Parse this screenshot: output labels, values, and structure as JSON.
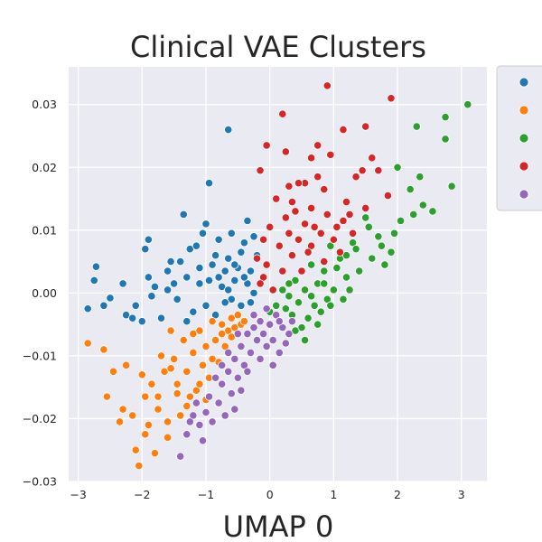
{
  "chart_data": {
    "type": "scatter",
    "title": "Clinical VAE Clusters",
    "xlabel": "UMAP 0",
    "ylabel": "",
    "xlim": [
      -3.15,
      3.4
    ],
    "ylim": [
      -0.03,
      0.036
    ],
    "xticks": [
      "−3",
      "−2",
      "−1",
      "0",
      "1",
      "2",
      "3"
    ],
    "xtick_values": [
      -3,
      -2,
      -1,
      0,
      1,
      2,
      3
    ],
    "yticks": [
      "−0.03",
      "−0.02",
      "−0.01",
      "0.00",
      "0.01",
      "0.02",
      "0.03"
    ],
    "ytick_values": [
      -0.03,
      -0.02,
      -0.01,
      0.0,
      0.01,
      0.02,
      0.03
    ],
    "grid": true,
    "background": "#eaeaf2",
    "legend_placement": "outside-right",
    "series": [
      {
        "color": "#1f77b4",
        "values": [
          [
            -2.85,
            -0.0025
          ],
          [
            -2.72,
            0.0042
          ],
          [
            -2.75,
            0.002
          ],
          [
            -2.6,
            -0.002
          ],
          [
            -2.5,
            -0.0008
          ],
          [
            -2.3,
            0.0015
          ],
          [
            -2.25,
            -0.0035
          ],
          [
            -2.1,
            -0.002
          ],
          [
            -2.0,
            -0.0045
          ],
          [
            -1.85,
            -0.0005
          ],
          [
            -1.9,
            0.0085
          ],
          [
            -1.95,
            0.007
          ],
          [
            -1.9,
            0.0025
          ],
          [
            -1.8,
            0.001
          ],
          [
            -1.7,
            -0.004
          ],
          [
            -1.6,
            0.0035
          ],
          [
            -1.55,
            0.005
          ],
          [
            -1.5,
            0.0015
          ],
          [
            -1.45,
            -0.001
          ],
          [
            -1.4,
            0.005
          ],
          [
            -1.35,
            0.0125
          ],
          [
            -1.3,
            0.0025
          ],
          [
            -1.25,
            0.007
          ],
          [
            -1.15,
            0.0075
          ],
          [
            -1.1,
            0.004
          ],
          [
            -1.05,
            0.0095
          ],
          [
            -1.0,
            0.011
          ],
          [
            -0.95,
            0.002
          ],
          [
            -0.9,
            0.0045
          ],
          [
            -0.85,
            0.006
          ],
          [
            -0.8,
            0.0085
          ],
          [
            -0.75,
            0.001
          ],
          [
            -0.7,
            0.0035
          ],
          [
            -0.65,
            0.0055
          ],
          [
            -0.6,
            -0.001
          ],
          [
            -0.55,
            0.002
          ],
          [
            -0.5,
            0.004
          ],
          [
            -0.45,
            0.0065
          ],
          [
            -0.4,
            0.008
          ],
          [
            -0.35,
            0.0015
          ],
          [
            -0.3,
            0.0035
          ],
          [
            -0.25,
            0.009
          ],
          [
            -0.2,
            0.006
          ],
          [
            -0.25,
            0.0
          ],
          [
            -0.45,
            -0.002
          ],
          [
            -0.7,
            -0.0015
          ],
          [
            -0.85,
            -0.0035
          ],
          [
            -1.0,
            -0.002
          ],
          [
            -1.2,
            -0.003
          ],
          [
            -1.3,
            -0.0045
          ],
          [
            -0.6,
            0.0095
          ],
          [
            -0.35,
            0.0115
          ],
          [
            -0.95,
            0.0175
          ],
          [
            -0.65,
            0.026
          ],
          [
            -1.6,
            0.0005
          ],
          [
            -2.15,
            -0.004
          ],
          [
            -0.55,
            0.0045
          ],
          [
            -0.4,
            0.0025
          ],
          [
            -0.8,
            0.0025
          ],
          [
            -1.1,
            0.0015
          ],
          [
            -0.3,
            -0.0015
          ],
          [
            -0.65,
            0.0005
          ]
        ]
      },
      {
        "color": "#ff7f0e",
        "values": [
          [
            -2.85,
            -0.008
          ],
          [
            -2.6,
            -0.009
          ],
          [
            -2.55,
            -0.0165
          ],
          [
            -2.45,
            -0.0125
          ],
          [
            -2.35,
            -0.0205
          ],
          [
            -2.25,
            -0.0115
          ],
          [
            -2.15,
            -0.0195
          ],
          [
            -2.1,
            -0.025
          ],
          [
            -2.05,
            -0.0275
          ],
          [
            -2.0,
            -0.013
          ],
          [
            -1.95,
            -0.0165
          ],
          [
            -1.9,
            -0.021
          ],
          [
            -1.85,
            -0.0145
          ],
          [
            -1.8,
            -0.0255
          ],
          [
            -1.75,
            -0.0185
          ],
          [
            -1.7,
            -0.01
          ],
          [
            -1.65,
            -0.0125
          ],
          [
            -1.6,
            -0.023
          ],
          [
            -1.55,
            -0.006
          ],
          [
            -1.5,
            -0.0105
          ],
          [
            -1.45,
            -0.0145
          ],
          [
            -1.4,
            -0.0195
          ],
          [
            -1.35,
            -0.0075
          ],
          [
            -1.3,
            -0.0125
          ],
          [
            -1.25,
            -0.0165
          ],
          [
            -1.2,
            -0.0095
          ],
          [
            -1.15,
            -0.0155
          ],
          [
            -1.1,
            -0.006
          ],
          [
            -1.05,
            -0.0115
          ],
          [
            -1.0,
            -0.0085
          ],
          [
            -0.95,
            -0.0135
          ],
          [
            -0.9,
            -0.0045
          ],
          [
            -0.85,
            -0.0075
          ],
          [
            -0.8,
            -0.011
          ],
          [
            -0.75,
            -0.005
          ],
          [
            -0.7,
            -0.0085
          ],
          [
            -0.65,
            -0.006
          ],
          [
            -0.6,
            -0.004
          ],
          [
            -0.55,
            -0.0055
          ],
          [
            -0.5,
            -0.0035
          ],
          [
            -0.45,
            -0.005
          ],
          [
            -0.4,
            -0.0045
          ],
          [
            -1.6,
            -0.0205
          ],
          [
            -1.3,
            -0.018
          ],
          [
            -1.0,
            -0.017
          ],
          [
            -1.2,
            -0.0065
          ],
          [
            -1.45,
            -0.016
          ],
          [
            -0.9,
            -0.0105
          ],
          [
            -0.75,
            -0.0065
          ],
          [
            -1.75,
            -0.0165
          ],
          [
            -2.3,
            -0.0185
          ],
          [
            -1.95,
            -0.0225
          ],
          [
            -0.6,
            -0.007
          ],
          [
            -1.1,
            -0.0145
          ],
          [
            -1.55,
            -0.012
          ]
        ]
      },
      {
        "color": "#2ca02c",
        "values": [
          [
            2.75,
            0.028
          ],
          [
            3.1,
            0.03
          ],
          [
            2.3,
            0.0265
          ],
          [
            2.85,
            0.017
          ],
          [
            2.75,
            0.0245
          ],
          [
            2.35,
            0.0185
          ],
          [
            2.2,
            0.0165
          ],
          [
            2.05,
            0.0115
          ],
          [
            2.0,
            0.02
          ],
          [
            1.9,
            0.0065
          ],
          [
            1.8,
            0.0045
          ],
          [
            1.7,
            0.009
          ],
          [
            1.6,
            0.0055
          ],
          [
            1.5,
            0.012
          ],
          [
            1.4,
            0.0035
          ],
          [
            1.3,
            0.008
          ],
          [
            1.2,
            0.0025
          ],
          [
            1.1,
            0.0055
          ],
          [
            1.0,
            0.0005
          ],
          [
            0.95,
            0.0075
          ],
          [
            0.9,
            -0.001
          ],
          [
            0.85,
            0.0035
          ],
          [
            0.8,
            -0.003
          ],
          [
            0.75,
            0.0015
          ],
          [
            0.7,
            -0.002
          ],
          [
            0.65,
            0.0045
          ],
          [
            0.6,
            -0.004
          ],
          [
            0.55,
            0.0005
          ],
          [
            0.5,
            -0.0055
          ],
          [
            0.45,
            -0.0015
          ],
          [
            0.4,
            0.002
          ],
          [
            0.35,
            -0.0035
          ],
          [
            0.3,
            -0.0005
          ],
          [
            0.25,
            -0.0025
          ],
          [
            0.2,
            0.0005
          ],
          [
            0.15,
            -0.0045
          ],
          [
            0.1,
            -0.002
          ],
          [
            0.05,
            0.0005
          ],
          [
            0.0,
            -0.003
          ],
          [
            0.55,
            -0.0075
          ],
          [
            0.75,
            -0.005
          ],
          [
            1.15,
            -0.001
          ],
          [
            1.25,
            0.0005
          ],
          [
            2.55,
            0.013
          ],
          [
            2.25,
            0.0125
          ],
          [
            1.95,
            0.0095
          ],
          [
            1.55,
            0.0105
          ],
          [
            1.35,
            0.007
          ],
          [
            1.05,
            0.004
          ],
          [
            0.85,
            0.0015
          ],
          [
            0.65,
            -0.0005
          ],
          [
            0.4,
            -0.006
          ],
          [
            2.4,
            0.014
          ],
          [
            1.75,
            0.0075
          ],
          [
            1.2,
            0.006
          ],
          [
            0.95,
            -0.002
          ],
          [
            0.3,
            0.0015
          ]
        ]
      },
      {
        "color": "#d62728",
        "values": [
          [
            0.9,
            0.033
          ],
          [
            1.9,
            0.031
          ],
          [
            0.2,
            0.0285
          ],
          [
            1.5,
            0.0265
          ],
          [
            1.15,
            0.026
          ],
          [
            -0.05,
            0.0235
          ],
          [
            0.75,
            0.0235
          ],
          [
            0.25,
            0.0225
          ],
          [
            0.65,
            0.0215
          ],
          [
            0.95,
            0.022
          ],
          [
            1.6,
            0.0215
          ],
          [
            1.45,
            0.0195
          ],
          [
            1.7,
            0.0195
          ],
          [
            1.35,
            0.0185
          ],
          [
            0.55,
            0.0175
          ],
          [
            -0.15,
            0.0195
          ],
          [
            0.3,
            0.017
          ],
          [
            0.45,
            0.0175
          ],
          [
            0.85,
            0.0165
          ],
          [
            0.1,
            0.015
          ],
          [
            0.4,
            0.013
          ],
          [
            0.65,
            0.0135
          ],
          [
            1.2,
            0.0145
          ],
          [
            1.5,
            0.0135
          ],
          [
            1.85,
            0.0155
          ],
          [
            1.25,
            0.0125
          ],
          [
            1.05,
            0.0105
          ],
          [
            0.8,
            0.0095
          ],
          [
            0.55,
            0.011
          ],
          [
            0.3,
            0.0095
          ],
          [
            0.15,
            0.0075
          ],
          [
            0.0,
            0.0105
          ],
          [
            -0.1,
            0.0085
          ],
          [
            -0.2,
            0.0055
          ],
          [
            -0.1,
            0.0025
          ],
          [
            0.05,
            0.0005
          ],
          [
            0.2,
            0.0035
          ],
          [
            0.35,
            0.006
          ],
          [
            0.5,
            0.0035
          ],
          [
            0.65,
            0.0075
          ],
          [
            0.85,
            0.005
          ],
          [
            1.0,
            0.0085
          ],
          [
            1.15,
            0.0115
          ],
          [
            1.3,
            0.0095
          ],
          [
            0.7,
            0.0105
          ],
          [
            0.45,
            0.0085
          ],
          [
            0.25,
            0.012
          ],
          [
            -0.05,
            0.0045
          ],
          [
            0.9,
            0.0125
          ],
          [
            0.6,
            0.0065
          ],
          [
            -0.15,
            0.0015
          ],
          [
            1.1,
            0.0065
          ],
          [
            0.35,
            0.0145
          ],
          [
            0.75,
            0.0185
          ]
        ]
      },
      {
        "color": "#9467bd",
        "values": [
          [
            -1.4,
            -0.026
          ],
          [
            -1.3,
            -0.0225
          ],
          [
            -1.2,
            -0.0195
          ],
          [
            -1.1,
            -0.021
          ],
          [
            -1.0,
            -0.019
          ],
          [
            -0.9,
            -0.0205
          ],
          [
            -0.8,
            -0.0175
          ],
          [
            -0.75,
            -0.0145
          ],
          [
            -0.7,
            -0.0195
          ],
          [
            -0.65,
            -0.0125
          ],
          [
            -0.6,
            -0.016
          ],
          [
            -0.55,
            -0.0105
          ],
          [
            -0.5,
            -0.0135
          ],
          [
            -0.45,
            -0.0085
          ],
          [
            -0.4,
            -0.0115
          ],
          [
            -0.35,
            -0.0065
          ],
          [
            -0.3,
            -0.0095
          ],
          [
            -0.25,
            -0.0055
          ],
          [
            -0.2,
            -0.0075
          ],
          [
            -0.15,
            -0.0045
          ],
          [
            -0.1,
            -0.0065
          ],
          [
            -0.05,
            -0.0085
          ],
          [
            0.0,
            -0.005
          ],
          [
            0.05,
            -0.0075
          ],
          [
            0.1,
            -0.0035
          ],
          [
            0.15,
            -0.0095
          ],
          [
            0.2,
            -0.0055
          ],
          [
            0.25,
            -0.008
          ],
          [
            0.3,
            -0.0065
          ],
          [
            0.35,
            -0.0045
          ],
          [
            -0.85,
            -0.0135
          ],
          [
            -0.95,
            -0.0165
          ],
          [
            -1.05,
            -0.0235
          ],
          [
            -1.25,
            -0.0205
          ],
          [
            -0.55,
            -0.0185
          ],
          [
            -0.45,
            -0.0155
          ],
          [
            -0.35,
            -0.0125
          ],
          [
            -0.15,
            -0.0105
          ],
          [
            0.05,
            -0.0115
          ],
          [
            -0.65,
            -0.0095
          ],
          [
            -0.25,
            -0.0035
          ],
          [
            -0.75,
            -0.0115
          ],
          [
            -0.5,
            -0.0065
          ],
          [
            0.15,
            -0.0045
          ],
          [
            -0.05,
            -0.0025
          ],
          [
            -1.15,
            -0.0175
          ]
        ]
      }
    ]
  }
}
